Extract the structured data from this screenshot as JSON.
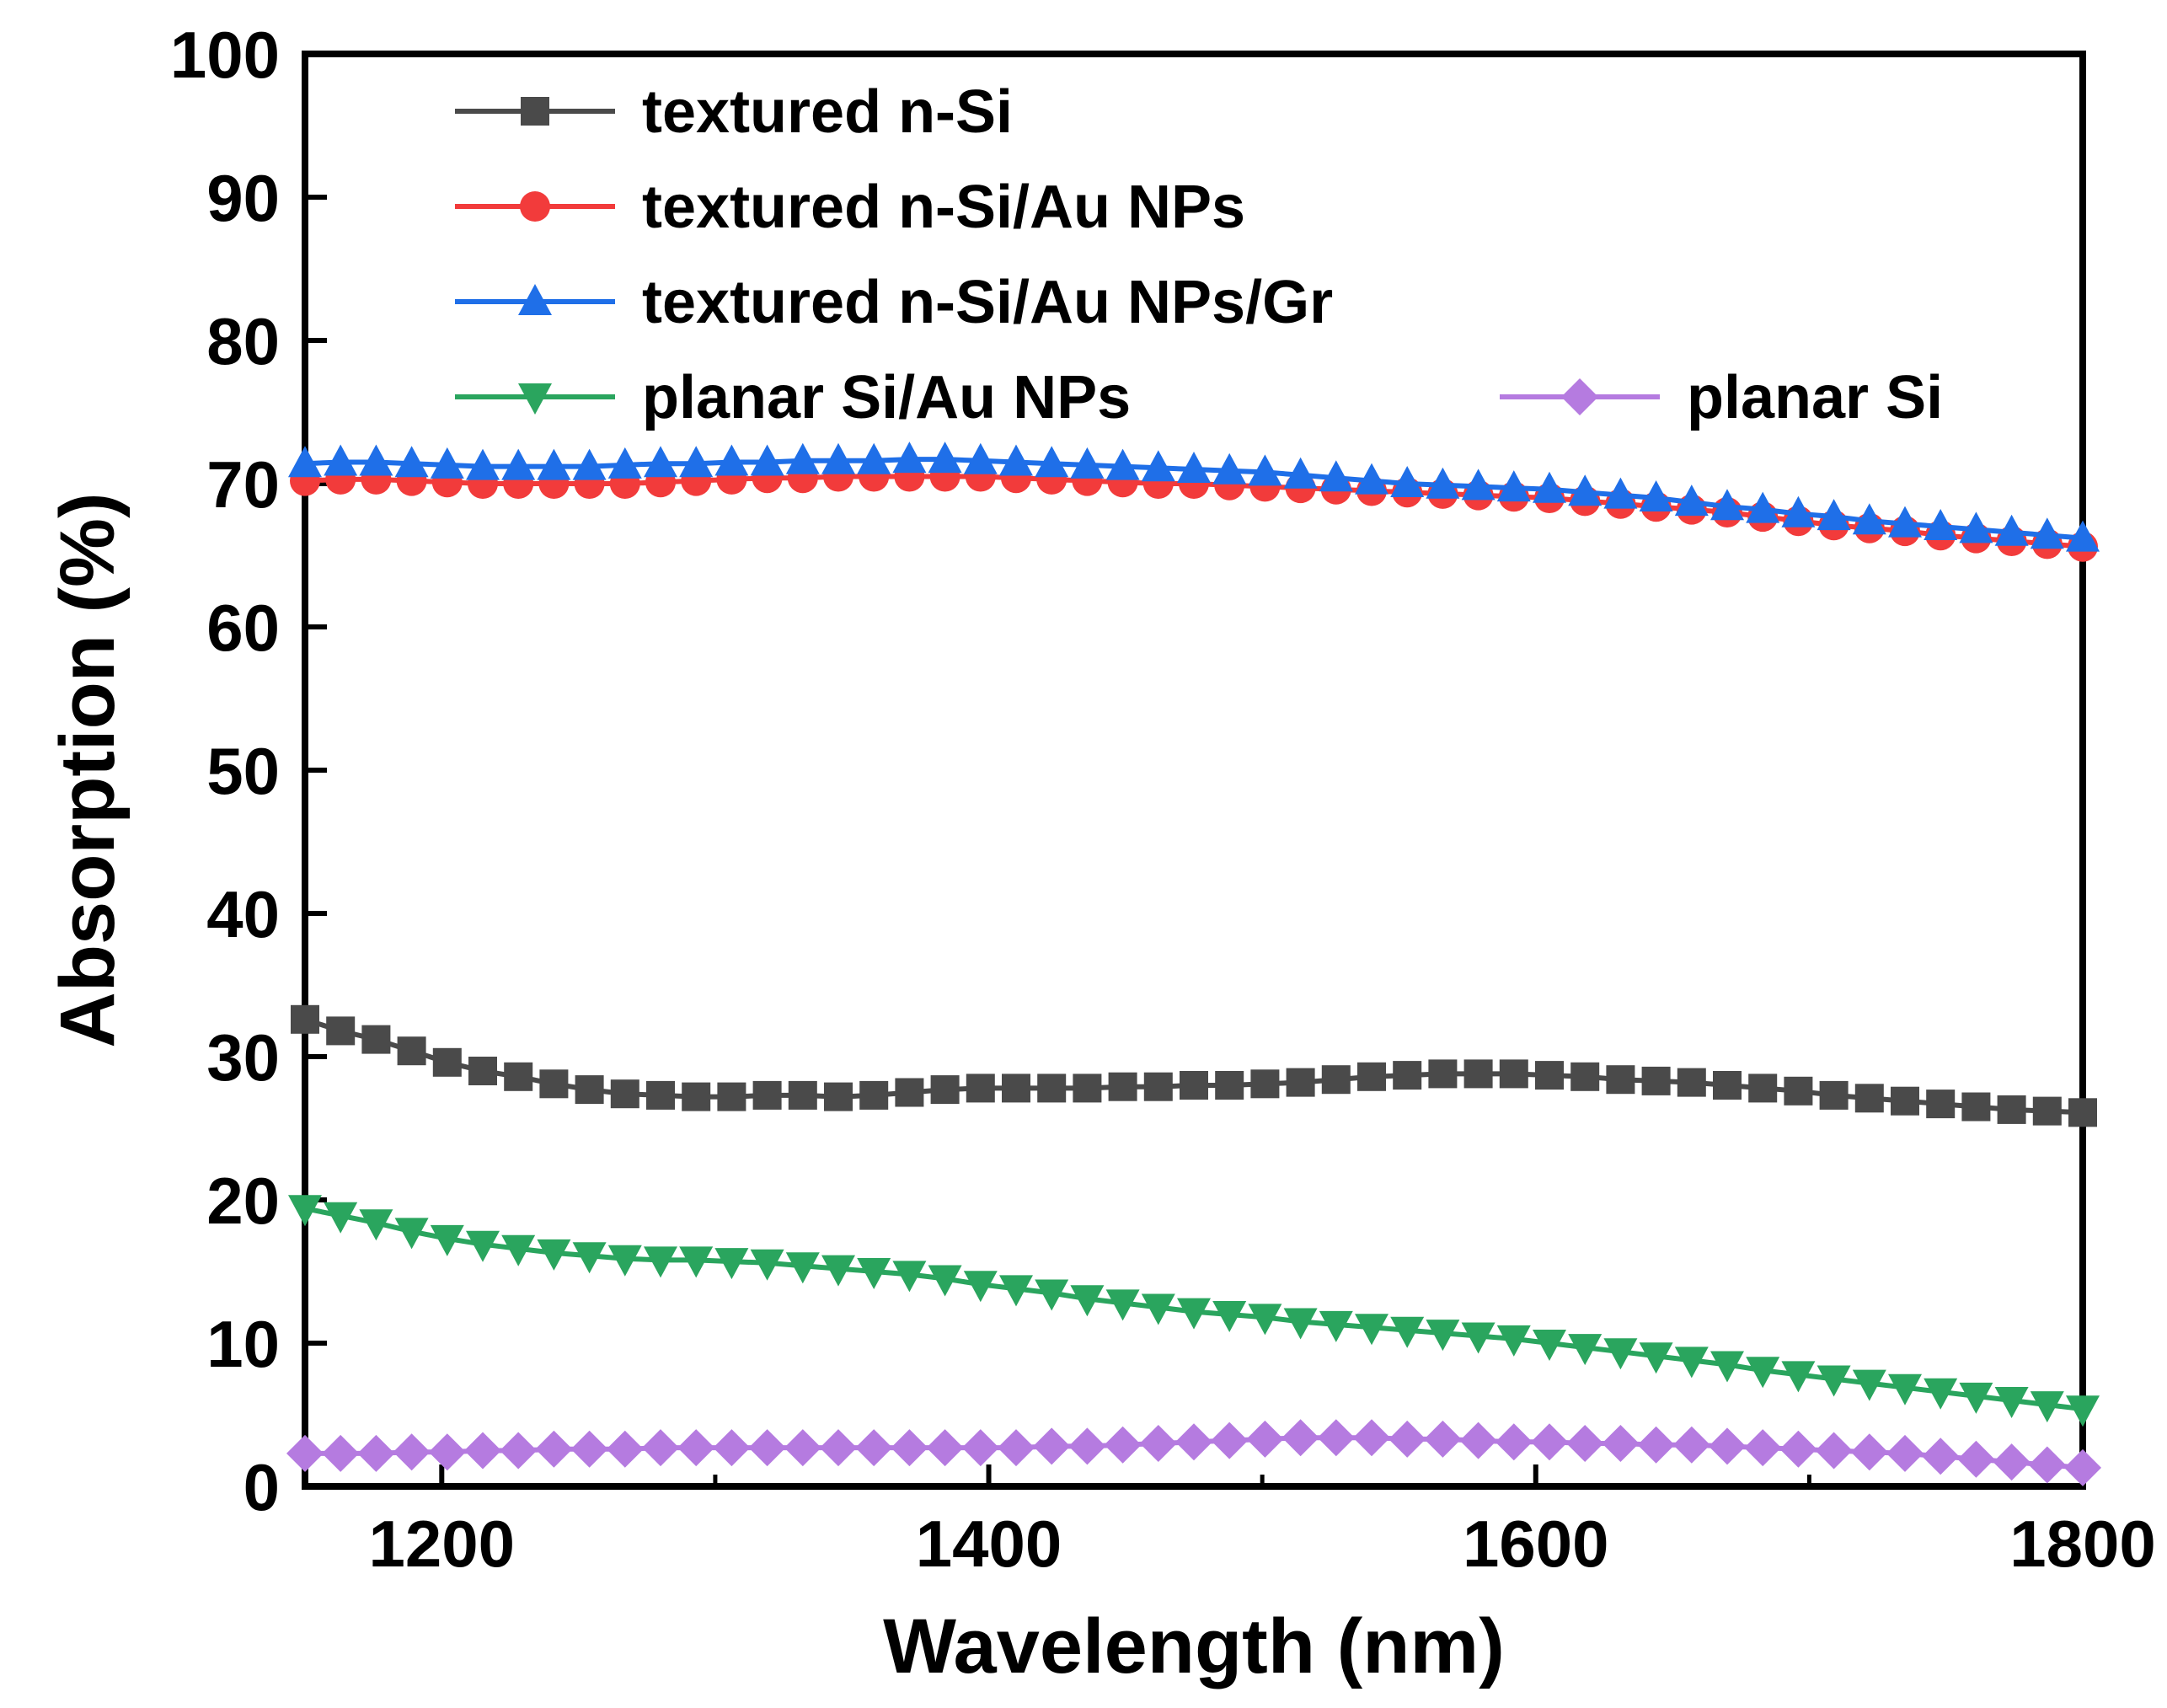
{
  "chart_data": {
    "type": "line",
    "title": "",
    "xlabel": "Wavelength (nm)",
    "ylabel": "Absorption (%)",
    "xlim": [
      1150,
      1800
    ],
    "ylim": [
      0,
      100
    ],
    "xticks": [
      1200,
      1400,
      1600,
      1800
    ],
    "yticks": [
      0,
      10,
      20,
      30,
      40,
      50,
      60,
      70,
      80,
      90,
      100
    ],
    "xtick_labels": [
      "1200",
      "1400",
      "1600",
      "1800"
    ],
    "ytick_labels": [
      "0",
      "10",
      "20",
      "30",
      "40",
      "50",
      "60",
      "70",
      "80",
      "90",
      "100"
    ],
    "legend_position": "top",
    "x": [
      1150,
      1163,
      1176,
      1189,
      1202,
      1215,
      1228,
      1241,
      1254,
      1267,
      1280,
      1293,
      1306,
      1319,
      1332,
      1345,
      1358,
      1371,
      1384,
      1397,
      1410,
      1423,
      1436,
      1449,
      1462,
      1475,
      1488,
      1501,
      1514,
      1527,
      1540,
      1553,
      1566,
      1579,
      1592,
      1605,
      1618,
      1631,
      1644,
      1657,
      1670,
      1683,
      1696,
      1709,
      1722,
      1735,
      1748,
      1761,
      1774,
      1787,
      1800
    ],
    "series": [
      {
        "name": "textured n-Si",
        "color": "#4a4a4a",
        "marker": "square",
        "values": [
          32.6,
          31.8,
          31.2,
          30.4,
          29.6,
          29.0,
          28.6,
          28.1,
          27.7,
          27.4,
          27.3,
          27.2,
          27.2,
          27.3,
          27.3,
          27.2,
          27.3,
          27.5,
          27.7,
          27.8,
          27.8,
          27.8,
          27.8,
          27.9,
          27.9,
          28.0,
          28.0,
          28.1,
          28.2,
          28.4,
          28.6,
          28.7,
          28.8,
          28.8,
          28.8,
          28.7,
          28.6,
          28.4,
          28.3,
          28.2,
          28.0,
          27.8,
          27.6,
          27.3,
          27.1,
          26.9,
          26.7,
          26.5,
          26.3,
          26.2,
          26.1
        ]
      },
      {
        "name": "textured n-Si/Au NPs",
        "color": "#f23b3b",
        "marker": "circle",
        "values": [
          70.2,
          70.3,
          70.3,
          70.2,
          70.1,
          70.0,
          70.0,
          70.0,
          70.0,
          70.0,
          70.1,
          70.2,
          70.3,
          70.4,
          70.4,
          70.5,
          70.5,
          70.5,
          70.5,
          70.5,
          70.4,
          70.3,
          70.2,
          70.1,
          70.0,
          70.0,
          69.9,
          69.8,
          69.7,
          69.6,
          69.5,
          69.4,
          69.3,
          69.2,
          69.1,
          69.0,
          68.8,
          68.6,
          68.4,
          68.2,
          68.0,
          67.7,
          67.4,
          67.1,
          66.9,
          66.7,
          66.4,
          66.2,
          66.0,
          65.8,
          65.6
        ]
      },
      {
        "name": "textured n-Si/Au NPs/Gr",
        "color": "#1f6fe8",
        "marker": "triangle-up",
        "values": [
          71.4,
          71.5,
          71.5,
          71.4,
          71.3,
          71.2,
          71.2,
          71.2,
          71.2,
          71.3,
          71.4,
          71.4,
          71.5,
          71.5,
          71.6,
          71.6,
          71.6,
          71.7,
          71.7,
          71.6,
          71.5,
          71.4,
          71.3,
          71.2,
          71.1,
          71.0,
          70.9,
          70.8,
          70.6,
          70.4,
          70.2,
          70.0,
          69.9,
          69.8,
          69.7,
          69.6,
          69.4,
          69.2,
          69.0,
          68.7,
          68.4,
          68.2,
          67.9,
          67.7,
          67.4,
          67.2,
          67.0,
          66.8,
          66.6,
          66.4,
          66.2
        ]
      },
      {
        "name": "planar Si/Au NPs",
        "color": "#2aa55e",
        "marker": "triangle-down",
        "values": [
          19.4,
          18.9,
          18.4,
          17.8,
          17.3,
          16.9,
          16.6,
          16.3,
          16.1,
          15.9,
          15.8,
          15.8,
          15.7,
          15.6,
          15.4,
          15.2,
          15.0,
          14.8,
          14.5,
          14.1,
          13.8,
          13.5,
          13.1,
          12.8,
          12.5,
          12.2,
          12.0,
          11.8,
          11.5,
          11.3,
          11.1,
          10.9,
          10.7,
          10.5,
          10.3,
          10.0,
          9.7,
          9.4,
          9.1,
          8.8,
          8.5,
          8.1,
          7.8,
          7.5,
          7.2,
          6.9,
          6.6,
          6.3,
          6.0,
          5.7,
          5.4
        ]
      },
      {
        "name": "planar Si",
        "color": "#b57be0",
        "marker": "diamond",
        "values": [
          2.3,
          2.3,
          2.3,
          2.4,
          2.4,
          2.5,
          2.5,
          2.6,
          2.6,
          2.6,
          2.7,
          2.7,
          2.7,
          2.7,
          2.7,
          2.7,
          2.7,
          2.7,
          2.7,
          2.7,
          2.7,
          2.8,
          2.8,
          2.9,
          3.0,
          3.1,
          3.2,
          3.3,
          3.4,
          3.4,
          3.4,
          3.3,
          3.3,
          3.2,
          3.1,
          3.1,
          3.0,
          3.0,
          2.9,
          2.9,
          2.8,
          2.7,
          2.6,
          2.5,
          2.4,
          2.3,
          2.1,
          1.9,
          1.7,
          1.5,
          1.3
        ]
      }
    ]
  }
}
